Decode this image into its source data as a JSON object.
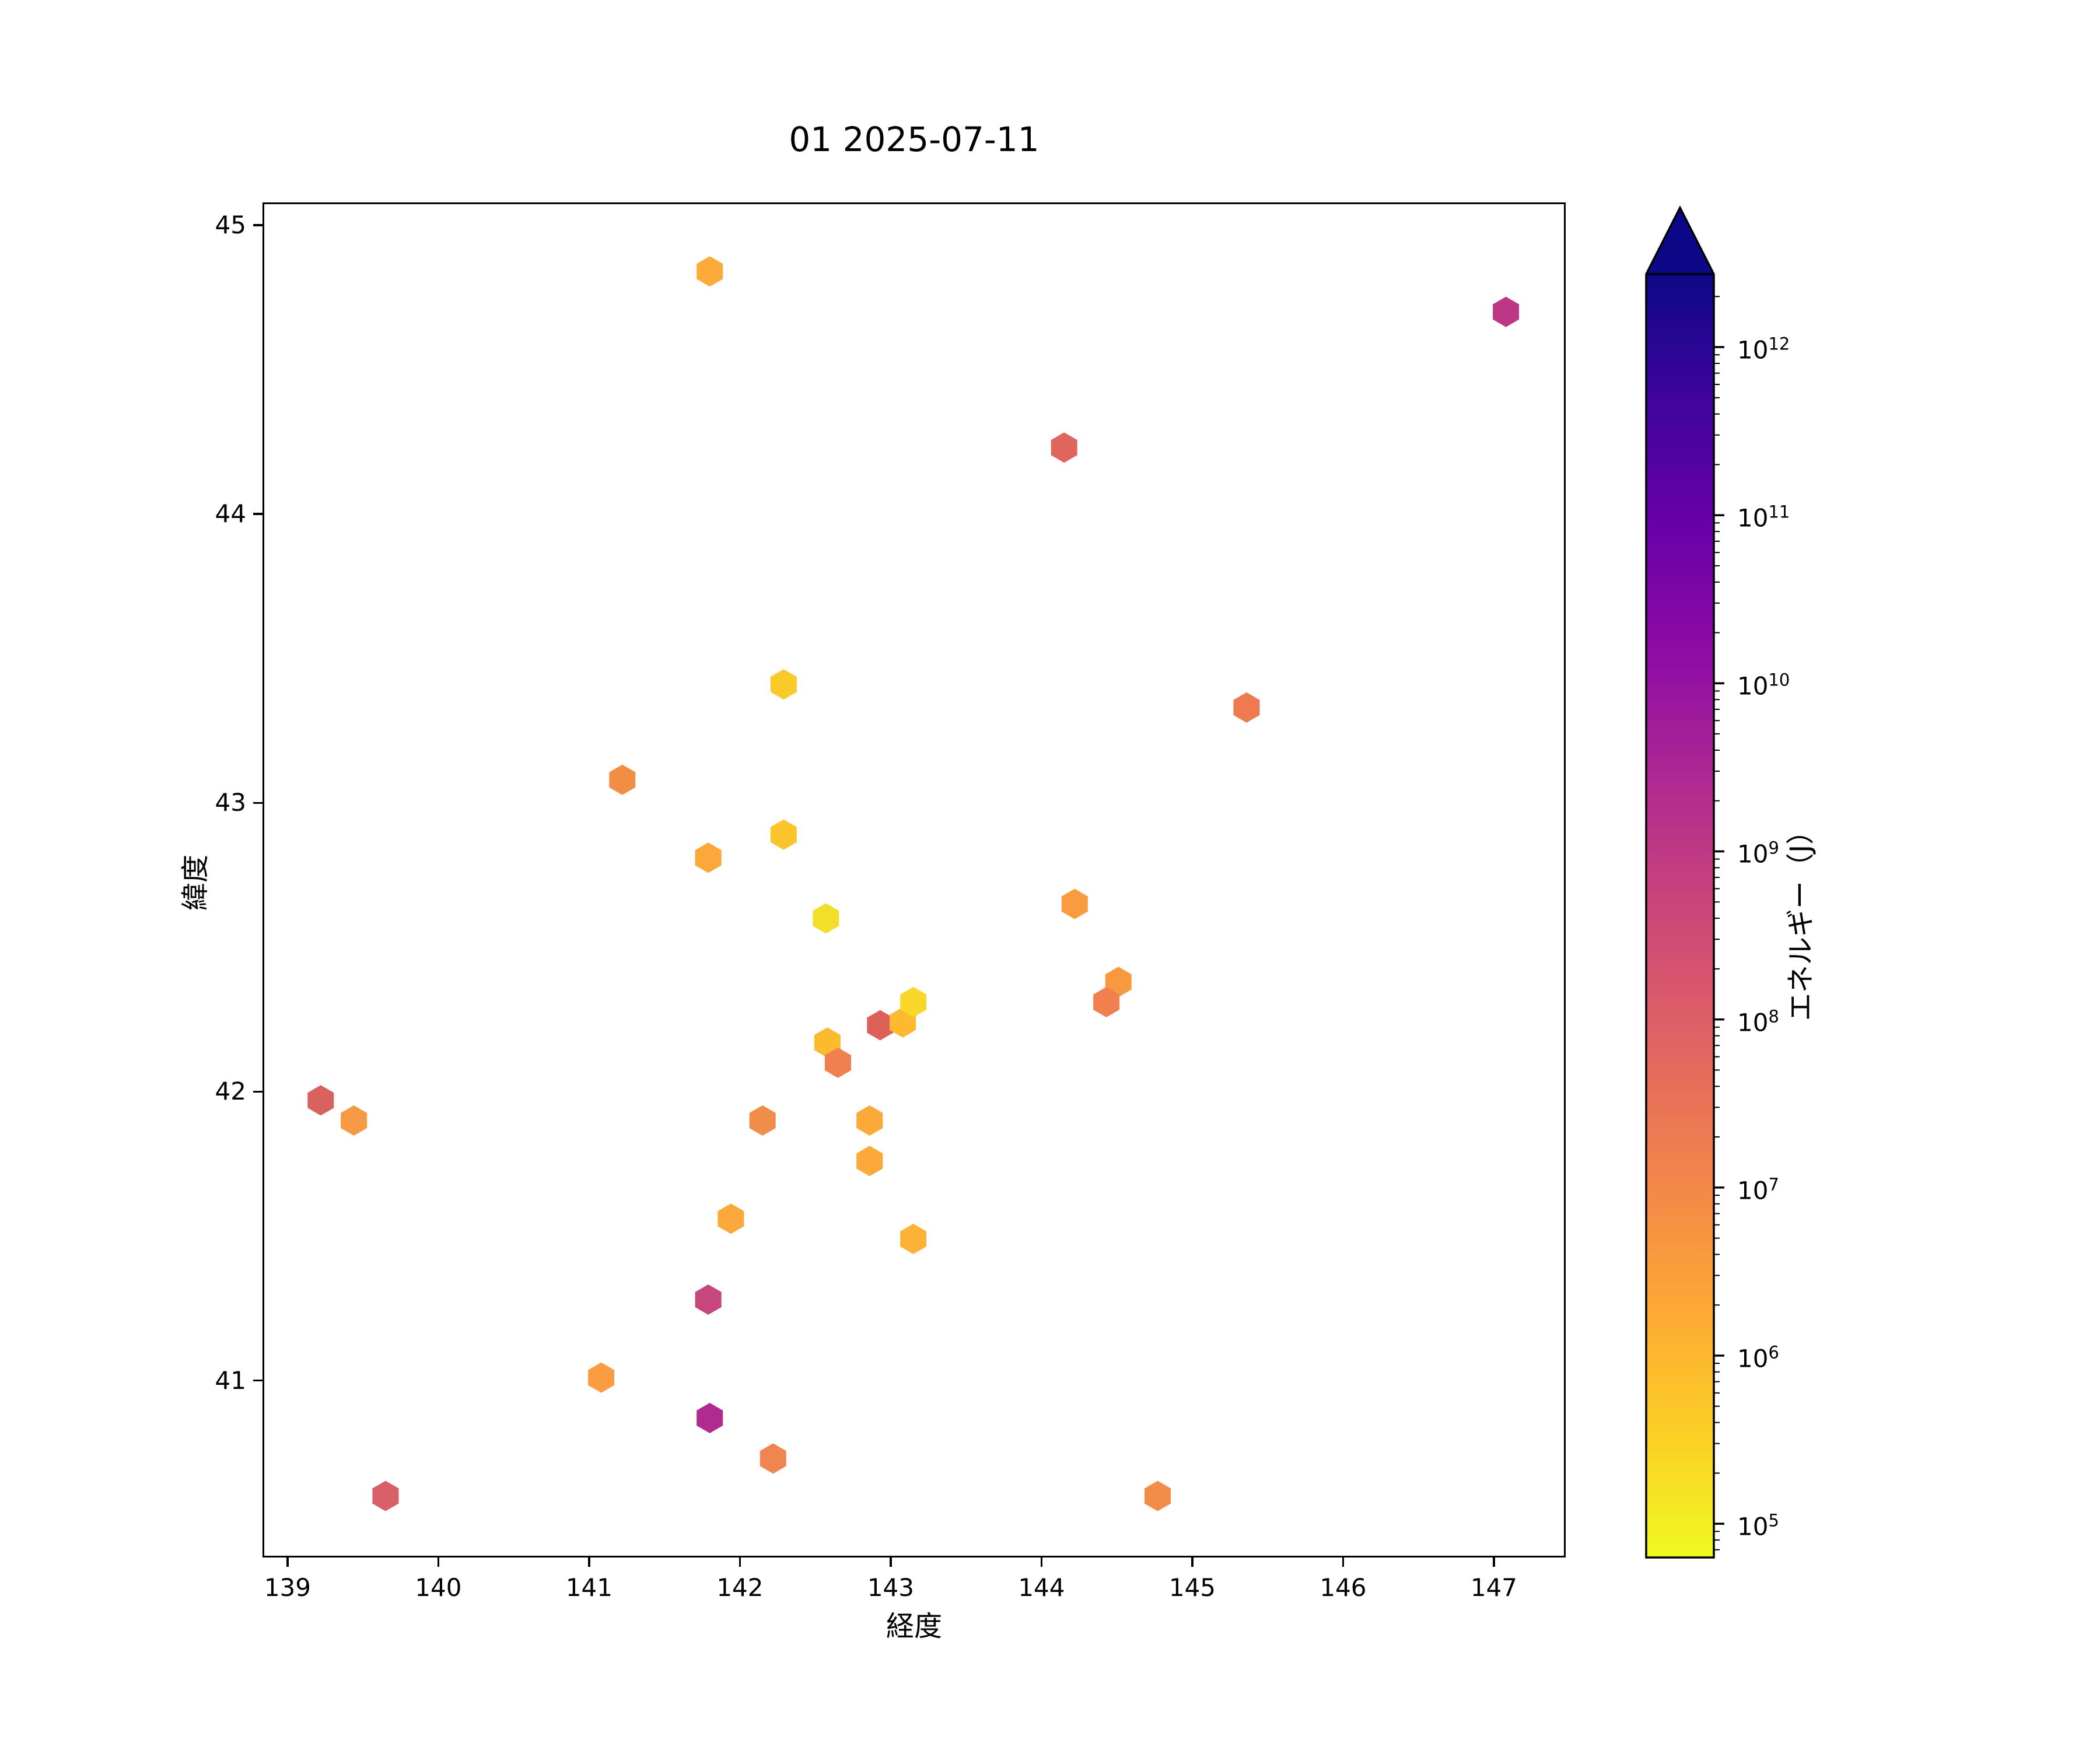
{
  "title": "01 2025-07-11",
  "chart_data": {
    "type": "scatter",
    "title": "01 2025-07-11",
    "xlabel": "経度",
    "ylabel": "緯度",
    "marker": "hexagon",
    "grid": false,
    "xlim": [
      138.834,
      147.476
    ],
    "ylim": [
      40.387,
      45.079
    ],
    "x_ticks": [
      139,
      140,
      141,
      142,
      143,
      144,
      145,
      146,
      147
    ],
    "y_ticks": [
      41,
      42,
      43,
      44,
      45
    ],
    "colorbar": {
      "label": "エネルギー（J）",
      "scale": "log",
      "tick_exponents": [
        5,
        6,
        7,
        8,
        9,
        10,
        11,
        12
      ],
      "range_log10": [
        4.799,
        12.434
      ],
      "extend": "max",
      "extend_color": "#0d0887",
      "colormap": "plasma_r (low energy = yellow, high energy = dark navy)",
      "plasma_stops_low_to_high": [
        "#f0f921",
        "#fcce25",
        "#fca636",
        "#f2844b",
        "#e16462",
        "#cc4778",
        "#b12a90",
        "#8f0da4",
        "#6a00a8",
        "#41049d",
        "#0d0887"
      ]
    },
    "points": [
      {
        "lon": 139.22,
        "lat": 41.97,
        "color": "#d7625e",
        "energy_j": 50000000
      },
      {
        "lon": 139.44,
        "lat": 41.9,
        "color": "#f79a45",
        "energy_j": 3000000
      },
      {
        "lon": 139.65,
        "lat": 40.6,
        "color": "#d86167",
        "energy_j": 80000000
      },
      {
        "lon": 141.08,
        "lat": 41.01,
        "color": "#f99c42",
        "energy_j": 2500000
      },
      {
        "lon": 141.22,
        "lat": 43.08,
        "color": "#f28d46",
        "energy_j": 6000000
      },
      {
        "lon": 141.79,
        "lat": 42.81,
        "color": "#faa83a",
        "energy_j": 2000000
      },
      {
        "lon": 141.8,
        "lat": 44.84,
        "color": "#fbac38",
        "energy_j": 1800000
      },
      {
        "lon": 141.79,
        "lat": 41.28,
        "color": "#c6477c",
        "energy_j": 500000000
      },
      {
        "lon": 141.8,
        "lat": 40.87,
        "color": "#b02b90",
        "energy_j": 2400000000
      },
      {
        "lon": 141.94,
        "lat": 41.56,
        "color": "#fba93a",
        "energy_j": 2000000
      },
      {
        "lon": 142.15,
        "lat": 41.9,
        "color": "#f08d48",
        "energy_j": 7000000
      },
      {
        "lon": 142.22,
        "lat": 40.73,
        "color": "#ef8550",
        "energy_j": 10000000
      },
      {
        "lon": 142.29,
        "lat": 43.41,
        "color": "#faca2b",
        "energy_j": 350000
      },
      {
        "lon": 142.29,
        "lat": 42.89,
        "color": "#fac42b",
        "energy_j": 450000
      },
      {
        "lon": 142.57,
        "lat": 42.6,
        "color": "#f3df2b",
        "energy_j": 170000
      },
      {
        "lon": 142.58,
        "lat": 42.17,
        "color": "#fcba31",
        "energy_j": 700000
      },
      {
        "lon": 142.65,
        "lat": 42.1,
        "color": "#f0814e",
        "energy_j": 10000000
      },
      {
        "lon": 142.86,
        "lat": 41.9,
        "color": "#fbaa39",
        "energy_j": 2000000
      },
      {
        "lon": 142.86,
        "lat": 41.76,
        "color": "#fbaa39",
        "energy_j": 2000000
      },
      {
        "lon": 142.93,
        "lat": 42.23,
        "color": "#dd6158",
        "energy_j": 50000000
      },
      {
        "lon": 143.08,
        "lat": 42.24,
        "color": "#fdba30",
        "energy_j": 600000
      },
      {
        "lon": 143.15,
        "lat": 42.31,
        "color": "#f9d62a",
        "energy_j": 240000
      },
      {
        "lon": 143.15,
        "lat": 41.49,
        "color": "#fbb237",
        "energy_j": 900000
      },
      {
        "lon": 144.15,
        "lat": 44.23,
        "color": "#e0655e",
        "energy_j": 40000000
      },
      {
        "lon": 144.22,
        "lat": 42.65,
        "color": "#f99b3f",
        "energy_j": 3000000
      },
      {
        "lon": 144.51,
        "lat": 42.38,
        "color": "#f9993f",
        "energy_j": 3000000
      },
      {
        "lon": 144.43,
        "lat": 42.31,
        "color": "#f0814e",
        "energy_j": 10000000
      },
      {
        "lon": 144.77,
        "lat": 40.6,
        "color": "#f28c48",
        "energy_j": 6000000
      },
      {
        "lon": 145.36,
        "lat": 43.33,
        "color": "#ee7a52",
        "energy_j": 17000000
      },
      {
        "lon": 147.08,
        "lat": 44.7,
        "color": "#bd3786",
        "energy_j": 1200000000
      }
    ]
  }
}
